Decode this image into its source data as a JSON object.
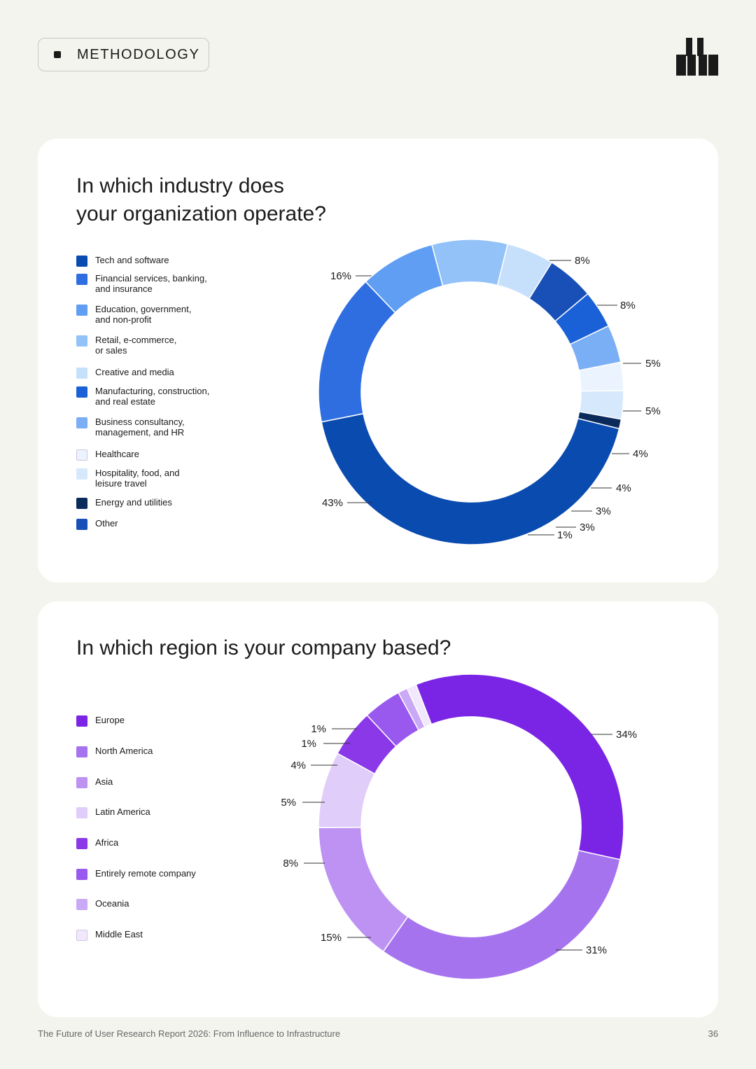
{
  "header": {
    "badge_label": "METHODOLOGY",
    "logo_icon": "brand-logo-icon"
  },
  "industry": {
    "title_lines": [
      "In which industry does",
      "your organization operate?"
    ],
    "legend": [
      {
        "label_lines": [
          "Tech and software"
        ],
        "color": "#0a4bb0"
      },
      {
        "label_lines": [
          "Financial services, banking,",
          "and insurance"
        ],
        "color": "#2f6ee0"
      },
      {
        "label_lines": [
          "Education, government,",
          "and non-profit"
        ],
        "color": "#5f9ef2"
      },
      {
        "label_lines": [
          "Retail, e-commerce,",
          "or sales"
        ],
        "color": "#93c2f8"
      },
      {
        "label_lines": [
          "Creative and media"
        ],
        "color": "#c6e0fc"
      },
      {
        "label_lines": [
          "Manufacturing, construction,",
          "and real estate"
        ],
        "color": "#1a60d6"
      },
      {
        "label_lines": [
          "Business consultancy,",
          "management, and HR"
        ],
        "color": "#7aaef5"
      },
      {
        "label_lines": [
          "Healthcare"
        ],
        "color": "#eaf3fe"
      },
      {
        "label_lines": [
          "Hospitality, food, and",
          "leisure travel"
        ],
        "color": "#d6e8fc"
      },
      {
        "label_lines": [
          "Energy and utilities"
        ],
        "color": "#0b2a5c"
      },
      {
        "label_lines": [
          "Other"
        ],
        "color": "#1850b8"
      }
    ]
  },
  "region": {
    "title_lines": [
      "In which region is your company based?"
    ],
    "legend": [
      {
        "label_lines": [
          "Europe"
        ],
        "color": "#7a24e6"
      },
      {
        "label_lines": [
          "North America"
        ],
        "color": "#a673ef"
      },
      {
        "label_lines": [
          "Asia"
        ],
        "color": "#bd92f3"
      },
      {
        "label_lines": [
          "Latin America"
        ],
        "color": "#e1cdf9"
      },
      {
        "label_lines": [
          "Africa"
        ],
        "color": "#8a38e8"
      },
      {
        "label_lines": [
          "Entirely remote company"
        ],
        "color": "#9a59ee"
      },
      {
        "label_lines": [
          "Oceania"
        ],
        "color": "#c9a9f5"
      },
      {
        "label_lines": [
          "Middle East"
        ],
        "color": "#f1e8fd"
      }
    ]
  },
  "chart_data": [
    {
      "type": "pie",
      "title": "In which industry does your organization operate?",
      "categories": [
        "Tech and software",
        "Financial services, banking, and insurance",
        "Education, government, and non-profit",
        "Retail, e-commerce, or sales",
        "Creative and media",
        "Other",
        "Manufacturing, construction, and real estate",
        "Business consultancy, management, and HR",
        "Healthcare",
        "Hospitality, food, and leisure travel",
        "Energy and utilities"
      ],
      "values": [
        43,
        16,
        8,
        8,
        5,
        5,
        4,
        4,
        3,
        3,
        1
      ],
      "value_labels": [
        "43%",
        "16%",
        "8%",
        "8%",
        "5%",
        "5%",
        "4%",
        "4%",
        "3%",
        "3%",
        "1%"
      ],
      "colors": [
        "#0a4bb0",
        "#2f6ee0",
        "#5f9ef2",
        "#93c2f8",
        "#c6e0fc",
        "#1850b8",
        "#1a60d6",
        "#7aaef5",
        "#eaf3fe",
        "#d6e8fc",
        "#0b2a5c"
      ],
      "donut": true,
      "legend_position": "left"
    },
    {
      "type": "pie",
      "title": "In which region is your company based?",
      "categories": [
        "Europe",
        "North America",
        "Asia",
        "Latin America",
        "Africa",
        "Entirely remote company",
        "Oceania",
        "Middle East"
      ],
      "values": [
        34,
        31,
        15,
        8,
        5,
        4,
        1,
        1
      ],
      "value_labels": [
        "34%",
        "31%",
        "15%",
        "8%",
        "5%",
        "4%",
        "1%",
        "1%"
      ],
      "colors": [
        "#7a24e6",
        "#a673ef",
        "#bd92f3",
        "#e1cdf9",
        "#8a38e8",
        "#9a59ee",
        "#c9a9f5",
        "#f1e8fd"
      ],
      "donut": true,
      "legend_position": "left"
    }
  ],
  "footer": {
    "report_title": "The Future of User Research Report 2026: From Influence to Infrastructure",
    "page_number": "36"
  }
}
